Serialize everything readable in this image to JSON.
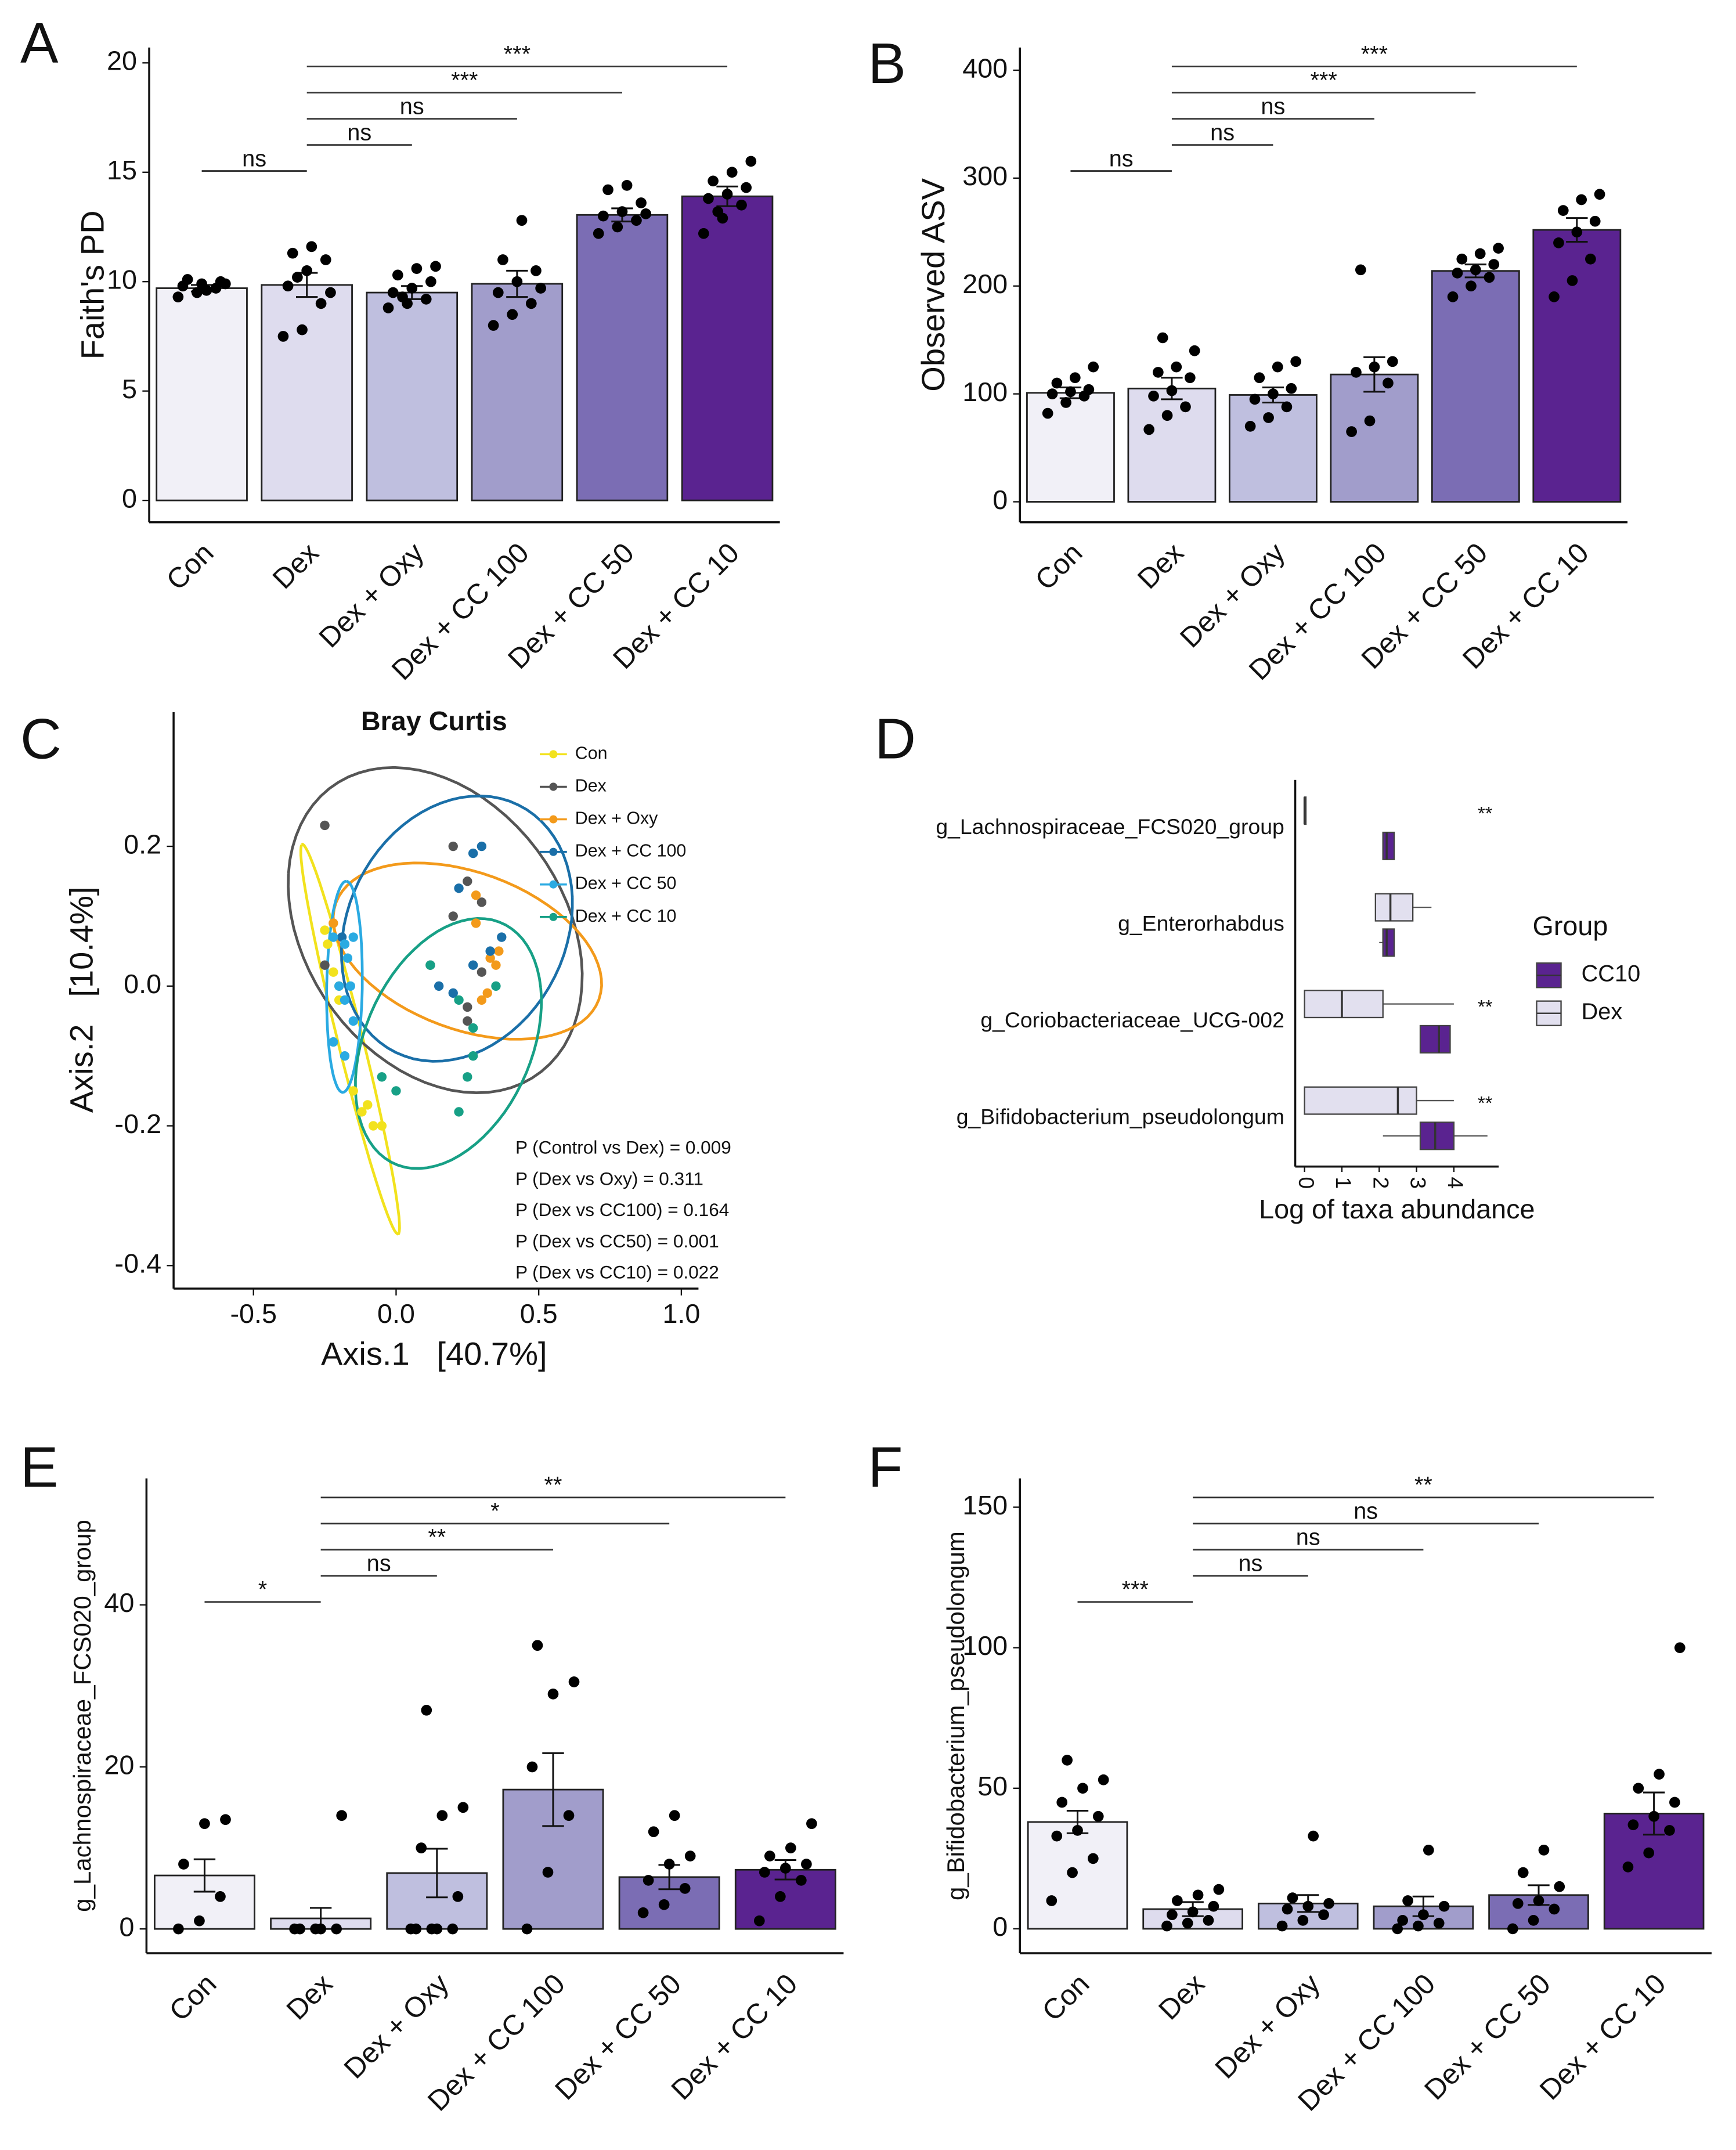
{
  "chart_data": [
    {
      "type": "bar",
      "panel": "A",
      "ylabel": "Faith's PD",
      "categories": [
        "Con",
        "Dex",
        "Dex + Oxy",
        "Dex + CC 100",
        "Dex + CC 50",
        "Dex + CC 10"
      ],
      "values": [
        9.7,
        9.85,
        9.5,
        9.9,
        13.05,
        13.9
      ],
      "errors": [
        0.15,
        0.55,
        0.3,
        0.6,
        0.3,
        0.45
      ],
      "points": [
        [
          9.3,
          9.5,
          9.7,
          9.8,
          9.9,
          10.0,
          10.1,
          9.6,
          9.9
        ],
        [
          7.5,
          7.8,
          9.0,
          9.8,
          10.5,
          11.0,
          11.3,
          11.6,
          9.5,
          10.2
        ],
        [
          8.8,
          9.0,
          9.2,
          9.5,
          9.7,
          10.0,
          10.3,
          10.6,
          10.7,
          9.3
        ],
        [
          8.0,
          8.5,
          9.0,
          9.5,
          10.0,
          10.5,
          11.0,
          12.8,
          9.7
        ],
        [
          12.2,
          12.5,
          12.8,
          13.0,
          13.2,
          13.6,
          14.2,
          14.4,
          13.1
        ],
        [
          12.2,
          12.9,
          13.5,
          13.8,
          14.0,
          14.3,
          14.6,
          15.0,
          15.5,
          13.2
        ]
      ],
      "colors": [
        "#f1f0f7",
        "#dedcee",
        "#bfbfdf",
        "#a19dcb",
        "#7b6db4",
        "#5a2390"
      ],
      "ylim": [
        -1,
        20.7
      ],
      "yticks": [
        0,
        5,
        10,
        15,
        20
      ],
      "comparisons": [
        {
          "between": [
            "Con",
            "Dex"
          ],
          "label": "ns"
        },
        {
          "between": [
            "Dex",
            "Dex + Oxy"
          ],
          "label": "ns"
        },
        {
          "between": [
            "Dex",
            "Dex + CC 100"
          ],
          "label": "ns"
        },
        {
          "between": [
            "Dex",
            "Dex + CC 50"
          ],
          "label": "***"
        },
        {
          "between": [
            "Dex",
            "Dex + CC 10"
          ],
          "label": "***"
        }
      ]
    },
    {
      "type": "bar",
      "panel": "B",
      "ylabel": "Observed ASV",
      "categories": [
        "Con",
        "Dex",
        "Dex + Oxy",
        "Dex + CC 100",
        "Dex + CC 50",
        "Dex + CC 10"
      ],
      "values": [
        101,
        105,
        99,
        118,
        214,
        252
      ],
      "errors": [
        5,
        10,
        7,
        16,
        6,
        11
      ],
      "points": [
        [
          82,
          92,
          98,
          100,
          102,
          104,
          110,
          115,
          125
        ],
        [
          67,
          80,
          88,
          98,
          103,
          115,
          120,
          125,
          140,
          152
        ],
        [
          70,
          78,
          88,
          95,
          100,
          105,
          115,
          125,
          130
        ],
        [
          65,
          75,
          110,
          120,
          125,
          130,
          215
        ],
        [
          190,
          200,
          208,
          212,
          215,
          220,
          225,
          230,
          235
        ],
        [
          190,
          205,
          225,
          240,
          250,
          260,
          270,
          280,
          285
        ]
      ],
      "colors": [
        "#f1f0f7",
        "#dedcee",
        "#bfbfdf",
        "#a19dcb",
        "#7b6db4",
        "#5a2390"
      ],
      "ylim": [
        -19,
        421
      ],
      "yticks": [
        0,
        100,
        200,
        300,
        400
      ],
      "comparisons": [
        {
          "between": [
            "Con",
            "Dex"
          ],
          "label": "ns"
        },
        {
          "between": [
            "Dex",
            "Dex + Oxy"
          ],
          "label": "ns"
        },
        {
          "between": [
            "Dex",
            "Dex + CC 100"
          ],
          "label": "ns"
        },
        {
          "between": [
            "Dex",
            "Dex + CC 50"
          ],
          "label": "***"
        },
        {
          "between": [
            "Dex",
            "Dex + CC 10"
          ],
          "label": "***"
        }
      ]
    },
    {
      "type": "scatter",
      "panel": "C",
      "title": "Bray Curtis",
      "xlabel": "Axis.1   [40.7%]",
      "ylabel": "Axis.2   [10.4%]",
      "xlim": [
        -0.78,
        1.06
      ],
      "xticks": [
        -0.5,
        {
          "value": 0,
          "label": "0.0"
        },
        0.5,
        {
          "value": 1,
          "label": "1.0"
        }
      ],
      "ylim": [
        -0.433,
        0.392
      ],
      "yticks": [
        -0.4,
        -0.2,
        {
          "value": 0,
          "label": "0.0"
        },
        0.2
      ],
      "series": [
        {
          "name": "Con",
          "color": "#f2e21d",
          "x": [
            -0.25,
            -0.24,
            -0.2,
            -0.22,
            -0.15,
            -0.1,
            -0.05,
            -0.08,
            -0.12,
            -0.2
          ],
          "y": [
            0.08,
            0.06,
            0.0,
            0.02,
            -0.15,
            -0.17,
            -0.2,
            -0.2,
            -0.18,
            -0.02
          ]
        },
        {
          "name": "Dex",
          "color": "#555555",
          "x": [
            -0.25,
            0.2,
            0.2,
            0.25,
            0.3,
            0.25,
            0.3,
            -0.25,
            0.12,
            0.25
          ],
          "y": [
            0.23,
            0.2,
            0.1,
            0.15,
            0.02,
            -0.03,
            0.12,
            0.03,
            0.03,
            -0.05
          ]
        },
        {
          "name": "Dex + Oxy",
          "color": "#f39a1b",
          "x": [
            0.28,
            0.28,
            0.33,
            0.32,
            0.36,
            0.35,
            -0.22,
            0.3
          ],
          "y": [
            0.13,
            0.09,
            0.04,
            -0.01,
            0.05,
            0.03,
            0.09,
            -0.02
          ]
        },
        {
          "name": "Dex + CC 100",
          "color": "#1a6fa8",
          "x": [
            0.27,
            0.3,
            0.37,
            0.33,
            0.22,
            0.2,
            0.15,
            0.27,
            -0.19
          ],
          "y": [
            0.19,
            0.2,
            0.07,
            0.05,
            0.14,
            -0.01,
            0.0,
            0.03,
            0.07
          ]
        },
        {
          "name": "Dex + CC 50",
          "color": "#2aaae2",
          "x": [
            -0.22,
            -0.18,
            -0.15,
            -0.17,
            -0.2,
            -0.18,
            -0.15,
            -0.22,
            -0.18,
            -0.16
          ],
          "y": [
            0.07,
            0.06,
            0.07,
            0.04,
            0.0,
            -0.02,
            -0.05,
            -0.08,
            -0.1,
            0.0
          ]
        },
        {
          "name": "Dex + CC 10",
          "color": "#17a086",
          "x": [
            0.12,
            0.22,
            0.27,
            0.27,
            0.25,
            0.22,
            0.35,
            -0.05,
            0.0
          ],
          "y": [
            0.03,
            -0.02,
            -0.06,
            -0.1,
            -0.13,
            -0.18,
            0.0,
            -0.13,
            -0.15
          ]
        }
      ],
      "annotations": [
        "P (Control vs Dex) = 0.009",
        "P (Dex vs Oxy) = 0.311",
        "P (Dex vs CC100) = 0.164",
        "P (Dex vs CC50) = 0.001",
        "P (Dex vs CC10) = 0.022"
      ]
    },
    {
      "type": "box",
      "panel": "D",
      "orientation": "horizontal",
      "xlabel": "Log of taxa abundance",
      "legend_title": "Group",
      "categories": [
        "g_Lachnospiraceae_FCS020_group",
        "g_Enterorhabdus",
        "g_Coriobacteriaceae_UCG-002",
        "g_Bifidobacterium_pseudolongum"
      ],
      "significance": [
        "**",
        null,
        "**",
        "**"
      ],
      "xlim": [
        -0.25,
        5.2
      ],
      "xticks": [
        0,
        1,
        2,
        3,
        4
      ],
      "series": [
        {
          "name": "CC10",
          "color": "#5a2390",
          "min": [
            2.1,
            2.0,
            3.1,
            2.1
          ],
          "q1": [
            2.1,
            2.1,
            3.1,
            3.1
          ],
          "median": [
            2.2,
            2.2,
            3.6,
            3.5
          ],
          "q3": [
            2.4,
            2.4,
            3.9,
            4.0
          ],
          "max": [
            2.4,
            2.4,
            3.9,
            4.9
          ]
        },
        {
          "name": "Dex",
          "color": "#e2e0ef",
          "min": [
            0,
            1.9,
            0,
            0
          ],
          "q1": [
            0,
            1.9,
            0,
            0
          ],
          "median": [
            0,
            2.3,
            1.0,
            2.5
          ],
          "q3": [
            0,
            2.9,
            2.1,
            3.0
          ],
          "max": [
            0,
            3.4,
            4.0,
            4.0
          ]
        }
      ]
    },
    {
      "type": "bar",
      "panel": "E",
      "ylabel": "g_Lachnospiraceae_FCS020_group",
      "categories": [
        "Con",
        "Dex",
        "Dex + Oxy",
        "Dex + CC 100",
        "Dex + CC 50",
        "Dex + CC 10"
      ],
      "values": [
        6.6,
        1.3,
        6.9,
        17.2,
        6.4,
        7.3
      ],
      "errors": [
        2,
        1.3,
        3,
        4.5,
        1.5,
        1.2
      ],
      "points": [
        [
          0,
          1,
          4,
          8,
          13,
          13.5
        ],
        [
          0,
          0,
          0,
          0,
          0,
          14
        ],
        [
          0,
          0,
          0,
          0,
          0,
          4,
          10,
          14,
          15,
          27
        ],
        [
          0,
          7,
          14,
          20,
          29,
          30.5,
          35
        ],
        [
          2,
          3,
          5,
          6,
          8,
          9,
          12,
          14
        ],
        [
          1,
          4,
          6,
          7,
          7.5,
          8,
          9,
          10,
          13
        ]
      ],
      "colors": [
        "#f1f0f7",
        "#dedcee",
        "#bfbfdf",
        "#a19dcb",
        "#7b6db4",
        "#5a2390"
      ],
      "ylim": [
        -3,
        55.6
      ],
      "yticks": [
        0,
        20,
        40
      ],
      "comparisons": [
        {
          "between": [
            "Con",
            "Dex"
          ],
          "label": "*"
        },
        {
          "between": [
            "Dex",
            "Dex + Oxy"
          ],
          "label": "ns"
        },
        {
          "between": [
            "Dex",
            "Dex + CC 100"
          ],
          "label": "**"
        },
        {
          "between": [
            "Dex",
            "Dex + CC 50"
          ],
          "label": "*"
        },
        {
          "between": [
            "Dex",
            "Dex + CC 10"
          ],
          "label": "**"
        }
      ]
    },
    {
      "type": "bar",
      "panel": "F",
      "ylabel": "g_Bifidobacterium_pseudolongum",
      "categories": [
        "Con",
        "Dex",
        "Dex + Oxy",
        "Dex + CC 100",
        "Dex + CC 50",
        "Dex + CC 10"
      ],
      "values": [
        38,
        7,
        9,
        8,
        12,
        41
      ],
      "errors": [
        4,
        2.5,
        3,
        3.5,
        3.5,
        7.5
      ],
      "points": [
        [
          10,
          20,
          25,
          33,
          35,
          40,
          45,
          50,
          53,
          60
        ],
        [
          1,
          2,
          3,
          5,
          6,
          8,
          10,
          12,
          14
        ],
        [
          1,
          3,
          5,
          7,
          8,
          9,
          11,
          33
        ],
        [
          0,
          1,
          2,
          3,
          5,
          8,
          10,
          28
        ],
        [
          0,
          3,
          7,
          9,
          10,
          15,
          20,
          28
        ],
        [
          22,
          27,
          35,
          37,
          40,
          45,
          50,
          55,
          100
        ]
      ],
      "colors": [
        "#f1f0f7",
        "#dedcee",
        "#bfbfdf",
        "#a19dcb",
        "#7b6db4",
        "#5a2390"
      ],
      "ylim": [
        -8.7,
        160.2
      ],
      "yticks": [
        0,
        50,
        100,
        150
      ],
      "comparisons": [
        {
          "between": [
            "Con",
            "Dex"
          ],
          "label": "***"
        },
        {
          "between": [
            "Dex",
            "Dex + Oxy"
          ],
          "label": "ns"
        },
        {
          "between": [
            "Dex",
            "Dex + CC 100"
          ],
          "label": "ns"
        },
        {
          "between": [
            "Dex",
            "Dex + CC 50"
          ],
          "label": "ns"
        },
        {
          "between": [
            "Dex",
            "Dex + CC 10"
          ],
          "label": "**"
        }
      ]
    }
  ]
}
